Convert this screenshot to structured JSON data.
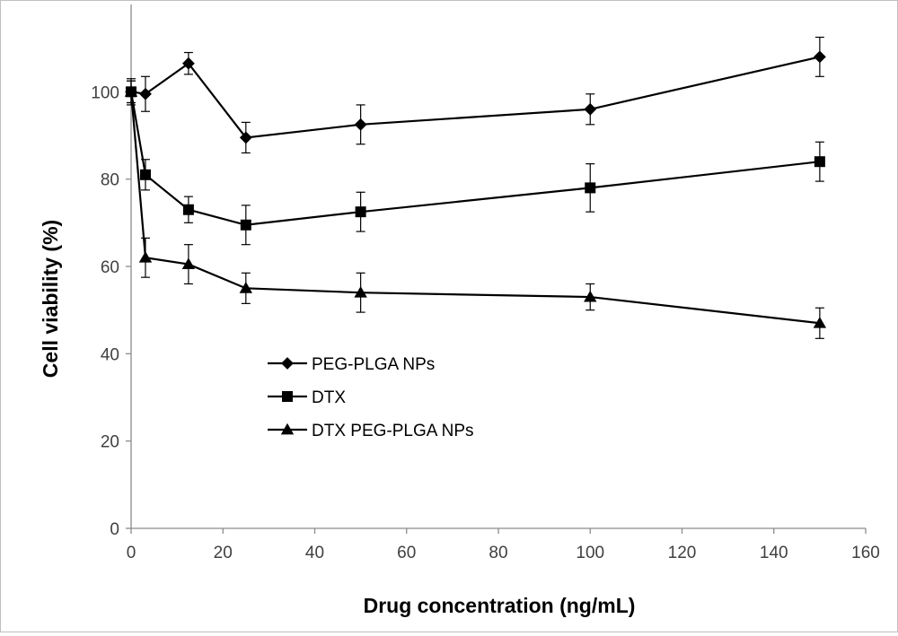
{
  "chart_data": {
    "type": "line",
    "title": "",
    "xlabel": "Drug concentration  (ng/mL)",
    "ylabel": "Cell viability (%)",
    "xlim": [
      0,
      160
    ],
    "ylim": [
      0,
      120
    ],
    "x_ticks": [
      0,
      20,
      40,
      60,
      80,
      100,
      120,
      140,
      160
    ],
    "y_ticks": [
      0,
      20,
      40,
      60,
      80,
      100
    ],
    "grid": false,
    "legend_position": "lower-left",
    "error_bars": true,
    "series": [
      {
        "name": "PEG-PLGA NPs",
        "marker": "diamond",
        "color": "#000000",
        "x": [
          0,
          3.125,
          12.5,
          25,
          50,
          100,
          150
        ],
        "y": [
          100,
          99.5,
          106.5,
          89.5,
          92.5,
          96,
          108
        ],
        "err": [
          3,
          4,
          2.5,
          3.5,
          4.5,
          3.5,
          4.5
        ]
      },
      {
        "name": "DTX",
        "marker": "square",
        "color": "#000000",
        "x": [
          0,
          3.125,
          12.5,
          25,
          50,
          100,
          150
        ],
        "y": [
          100,
          81,
          73,
          69.5,
          72.5,
          78,
          84
        ],
        "err": [
          2.5,
          3.5,
          3,
          4.5,
          4.5,
          5.5,
          4.5
        ]
      },
      {
        "name": "DTX PEG-PLGA NPs",
        "marker": "triangle",
        "color": "#000000",
        "x": [
          0,
          3.125,
          12.5,
          25,
          50,
          100,
          150
        ],
        "y": [
          100,
          62,
          60.5,
          55,
          54,
          53,
          47
        ],
        "err": [
          2.5,
          4.5,
          4.5,
          3.5,
          4.5,
          3,
          3.5
        ]
      }
    ]
  }
}
